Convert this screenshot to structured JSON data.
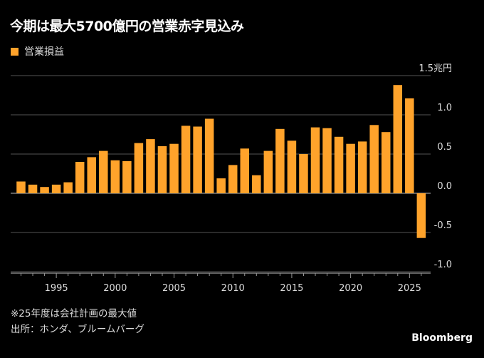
{
  "chart_data": {
    "type": "bar",
    "title": "今期は最大5700億円の営業赤字見込み",
    "legend": [
      "営業損益"
    ],
    "legend_placement": "top-left",
    "color": "#ffa32b",
    "unit_label": "兆円",
    "categories": [
      1992,
      1993,
      1994,
      1995,
      1996,
      1997,
      1998,
      1999,
      2000,
      2001,
      2002,
      2003,
      2004,
      2005,
      2006,
      2007,
      2008,
      2009,
      2010,
      2011,
      2012,
      2013,
      2014,
      2015,
      2016,
      2017,
      2018,
      2019,
      2020,
      2021,
      2022,
      2023,
      2024,
      2025,
      2026
    ],
    "values": [
      0.15,
      0.11,
      0.08,
      0.11,
      0.14,
      0.4,
      0.46,
      0.54,
      0.42,
      0.41,
      0.64,
      0.69,
      0.6,
      0.63,
      0.86,
      0.85,
      0.95,
      0.19,
      0.36,
      0.57,
      0.23,
      0.54,
      0.82,
      0.67,
      0.5,
      0.84,
      0.83,
      0.72,
      0.63,
      0.66,
      0.87,
      0.78,
      1.38,
      1.21,
      -0.57
    ],
    "ylim": [
      -1.0,
      1.5
    ],
    "yticks": [
      {
        "v": 1.5,
        "label": "1.5兆円"
      },
      {
        "v": 1.0,
        "label": "1.0"
      },
      {
        "v": 0.5,
        "label": "0.5"
      },
      {
        "v": 0.0,
        "label": "0.0"
      },
      {
        "v": -0.5,
        "label": "-0.5"
      },
      {
        "v": -1.0,
        "label": "-1.0"
      }
    ],
    "xticks": [
      1995,
      2000,
      2005,
      2010,
      2015,
      2020,
      2025
    ],
    "grid": true,
    "xlabel": "",
    "ylabel": ""
  },
  "notes": {
    "footnote": "※25年度は会社計画の最大値",
    "source": "出所：ホンダ、ブルームバーグ",
    "brand": "Bloomberg"
  }
}
